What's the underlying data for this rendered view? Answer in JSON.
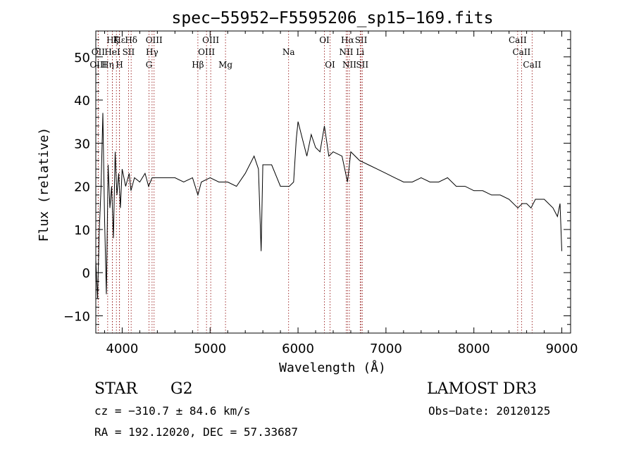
{
  "chart_data": {
    "type": "line",
    "title": "spec−55952−F5595206_sp15−169.fits",
    "xlabel": "Wavelength (Å)",
    "ylabel": "Flux (relative)",
    "xlim": [
      3700,
      9100
    ],
    "ylim": [
      -14,
      56
    ],
    "xticks": [
      4000,
      5000,
      6000,
      7000,
      8000,
      9000
    ],
    "yticks": [
      -10,
      0,
      10,
      20,
      30,
      40,
      50
    ],
    "ytick_labels": [
      "−10",
      "0",
      "10",
      "20",
      "30",
      "40",
      "50"
    ],
    "line_color": "#000000",
    "marker_color": "#8b0000",
    "series": [
      {
        "name": "flux",
        "x": [
          3700,
          3720,
          3740,
          3760,
          3780,
          3800,
          3820,
          3840,
          3860,
          3880,
          3900,
          3920,
          3940,
          3960,
          3980,
          4000,
          4040,
          4080,
          4100,
          4140,
          4200,
          4260,
          4300,
          4340,
          4400,
          4500,
          4600,
          4700,
          4800,
          4861,
          4900,
          5000,
          5100,
          5200,
          5300,
          5400,
          5500,
          5550,
          5580,
          5600,
          5700,
          5800,
          5900,
          5950,
          5980,
          6000,
          6050,
          6100,
          6150,
          6200,
          6250,
          6300,
          6350,
          6400,
          6500,
          6563,
          6600,
          6700,
          6800,
          6900,
          7000,
          7100,
          7200,
          7300,
          7400,
          7500,
          7600,
          7700,
          7800,
          7900,
          8000,
          8100,
          8200,
          8300,
          8400,
          8500,
          8550,
          8600,
          8650,
          8700,
          8800,
          8900,
          8950,
          8980,
          9000
        ],
        "y": [
          3,
          -6,
          10,
          20,
          37,
          12,
          -5,
          25,
          15,
          20,
          8,
          28,
          18,
          23,
          15,
          24,
          20,
          23,
          19,
          22,
          21,
          23,
          20,
          22,
          22,
          22,
          22,
          21,
          22,
          18,
          21,
          22,
          21,
          21,
          20,
          23,
          27,
          24,
          5,
          25,
          25,
          20,
          20,
          21,
          31,
          35,
          31,
          27,
          32,
          29,
          28,
          34,
          27,
          28,
          27,
          21,
          28,
          26,
          25,
          24,
          23,
          22,
          21,
          21,
          22,
          21,
          21,
          22,
          20,
          20,
          19,
          19,
          18,
          18,
          17,
          15,
          16,
          16,
          15,
          17,
          17,
          15,
          13,
          16,
          5
        ]
      }
    ],
    "line_markers": [
      {
        "label": "Hε",
        "x": 3970,
        "row": 1
      },
      {
        "label": "OII",
        "x": 3727,
        "row": 2
      },
      {
        "label": "OIII",
        "x": 3727,
        "row": 3
      },
      {
        "label": "Hζ",
        "x": 3889,
        "row": 1
      },
      {
        "label": "K",
        "x": 3934,
        "row": 1
      },
      {
        "label": "H",
        "x": 3969,
        "row": 3
      },
      {
        "label": "Hη",
        "x": 3835,
        "row": 3
      },
      {
        "label": "HeI",
        "x": 3889,
        "row": 2
      },
      {
        "label": "SII",
        "x": 4072,
        "row": 2
      },
      {
        "label": "Hδ",
        "x": 4102,
        "row": 1
      },
      {
        "label": "OIII",
        "x": 4363,
        "row": 1
      },
      {
        "label": "Hγ",
        "x": 4340,
        "row": 2
      },
      {
        "label": "G",
        "x": 4305,
        "row": 3
      },
      {
        "label": "Hβ",
        "x": 4861,
        "row": 3
      },
      {
        "label": "OIII",
        "x": 5007,
        "row": 1
      },
      {
        "label": "OIII",
        "x": 4959,
        "row": 2
      },
      {
        "label": "Mg",
        "x": 5175,
        "row": 3
      },
      {
        "label": "Na",
        "x": 5893,
        "row": 2
      },
      {
        "label": "OI",
        "x": 6300,
        "row": 1
      },
      {
        "label": "OI",
        "x": 6364,
        "row": 3
      },
      {
        "label": "Hα",
        "x": 6563,
        "row": 1
      },
      {
        "label": "NII",
        "x": 6548,
        "row": 2
      },
      {
        "label": "NII",
        "x": 6584,
        "row": 3
      },
      {
        "label": "SII",
        "x": 6717,
        "row": 1
      },
      {
        "label": "Li",
        "x": 6707,
        "row": 2
      },
      {
        "label": "SII",
        "x": 6731,
        "row": 3
      },
      {
        "label": "CaII",
        "x": 8498,
        "row": 1
      },
      {
        "label": "CaII",
        "x": 8542,
        "row": 2
      },
      {
        "label": "CaII",
        "x": 8662,
        "row": 3
      }
    ]
  },
  "info": {
    "class": "STAR",
    "subclass": "G2",
    "survey": "LAMOST DR3",
    "cz": "cz = −310.7 ± 84.6 km/s",
    "obs_date": "Obs−Date: 20120125",
    "coords": "RA = 192.12020, DEC =  57.33687"
  }
}
